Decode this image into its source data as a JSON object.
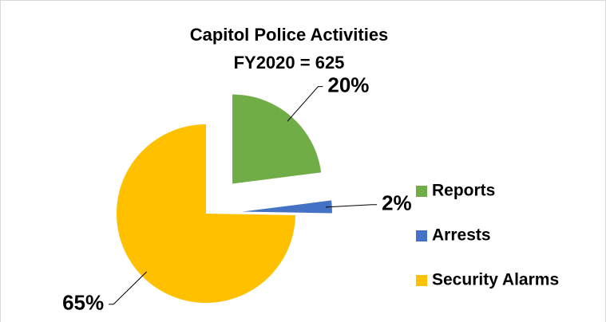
{
  "chart_data": {
    "type": "pie",
    "title": "Capitol Police Activities",
    "subtitle": "FY2020 = 625",
    "categories": [
      "Reports",
      "Arrests",
      "Security Alarms"
    ],
    "values": [
      20,
      2,
      65
    ],
    "value_labels": [
      "20%",
      "2%",
      "65%"
    ],
    "colors": [
      "#70ad47",
      "#4472c4",
      "#ffc000"
    ],
    "legend": "right"
  }
}
